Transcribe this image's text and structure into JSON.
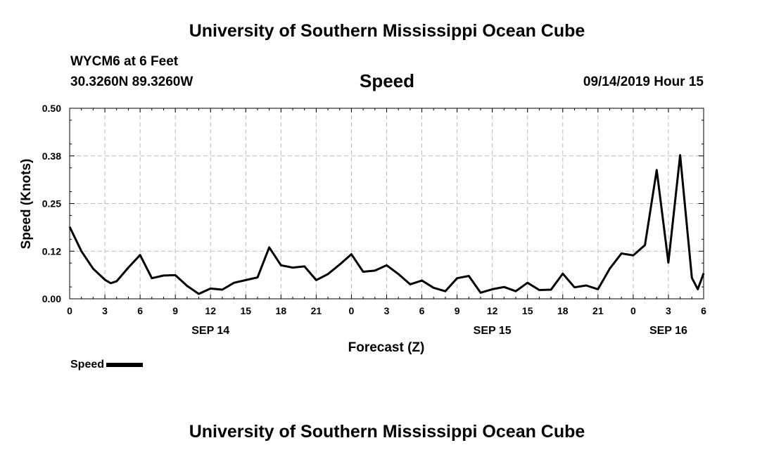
{
  "header": {
    "title_top": "University of Southern Mississippi Ocean Cube",
    "station": "WYCM6 at 6 Feet",
    "coords": "30.3260N 89.3260W",
    "variable": "Speed",
    "datetime": "09/14/2019 Hour 15"
  },
  "footer": {
    "title_bottom": "University of Southern Mississippi Ocean Cube"
  },
  "legend": {
    "label": "Speed"
  },
  "chart_data": {
    "type": "line",
    "ylabel": "Speed (Knots)",
    "xlabel": "Forecast (Z)",
    "ylim": [
      0,
      0.5
    ],
    "yticks": [
      "0.00",
      "0.12",
      "0.25",
      "0.38",
      "0.50"
    ],
    "ytick_values": [
      0,
      0.125,
      0.25,
      0.375,
      0.5
    ],
    "xlim": [
      0,
      54
    ],
    "xtick_labels": [
      "0",
      "3",
      "6",
      "9",
      "12",
      "15",
      "18",
      "21",
      "0",
      "3",
      "6",
      "9",
      "12",
      "15",
      "18",
      "21",
      "0",
      "3",
      "6"
    ],
    "date_labels": [
      {
        "label": "SEP 14",
        "hour": 12
      },
      {
        "label": "SEP 15",
        "hour": 36
      },
      {
        "label": "SEP 16",
        "hour": 51
      }
    ],
    "grid": true,
    "legend_position": "bottom-left",
    "series": [
      {
        "name": "Speed",
        "color": "#000000",
        "x": [
          0,
          1,
          2,
          3,
          3.5,
          4,
          5,
          6,
          7,
          8,
          9,
          10,
          11,
          12,
          13,
          14,
          15,
          16,
          17,
          18,
          19,
          20,
          21,
          22,
          23,
          24,
          25,
          26,
          27,
          28,
          29,
          30,
          31,
          32,
          33,
          34,
          35,
          36,
          37,
          38,
          39,
          40,
          41,
          42,
          43,
          44,
          45,
          46,
          47,
          48,
          49,
          50,
          51,
          52,
          53,
          53.5,
          54
        ],
        "values": [
          0.189,
          0.125,
          0.079,
          0.05,
          0.041,
          0.046,
          0.082,
          0.115,
          0.054,
          0.061,
          0.062,
          0.034,
          0.013,
          0.027,
          0.024,
          0.042,
          0.049,
          0.056,
          0.135,
          0.088,
          0.082,
          0.085,
          0.049,
          0.065,
          0.09,
          0.117,
          0.071,
          0.074,
          0.088,
          0.065,
          0.038,
          0.048,
          0.029,
          0.02,
          0.054,
          0.06,
          0.016,
          0.025,
          0.031,
          0.02,
          0.042,
          0.023,
          0.024,
          0.066,
          0.03,
          0.035,
          0.025,
          0.079,
          0.119,
          0.114,
          0.141,
          0.338,
          0.095,
          0.377,
          0.055,
          0.025,
          0.067
        ]
      }
    ]
  }
}
